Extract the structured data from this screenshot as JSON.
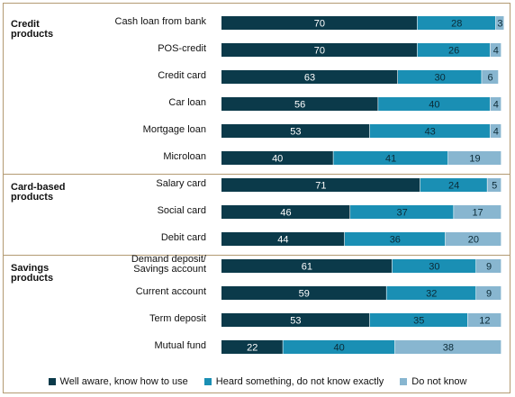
{
  "chart_data": {
    "type": "bar",
    "orientation": "horizontal",
    "stacked": true,
    "unit": "percent",
    "xlim": [
      0,
      100
    ],
    "groups": [
      {
        "label": [
          "Credit",
          "products"
        ],
        "categories": [
          "Cash loan from bank",
          "POS-credit",
          "Credit card",
          "Car loan",
          "Mortgage loan",
          "Microloan"
        ]
      },
      {
        "label": [
          "Card-based",
          "products"
        ],
        "categories": [
          "Salary card",
          "Social card",
          "Debit card"
        ]
      },
      {
        "label": [
          "Savings",
          "products"
        ],
        "categories": [
          [
            "Demand deposit/",
            "Savings account"
          ],
          "Current account",
          "Term deposit",
          "Mutual fund"
        ]
      }
    ],
    "series": [
      {
        "name": "Well aware, know how to use",
        "color": "#0b3a4a",
        "label_color": "#ffffff",
        "values": [
          70,
          70,
          63,
          56,
          53,
          40,
          71,
          46,
          44,
          61,
          59,
          53,
          22
        ]
      },
      {
        "name": "Heard something, do not know exactly",
        "color": "#1a8fb4",
        "label_color": "#0b2a36",
        "values": [
          28,
          26,
          30,
          40,
          43,
          41,
          24,
          37,
          36,
          30,
          32,
          35,
          40
        ]
      },
      {
        "name": "Do not know",
        "color": "#88b6d0",
        "label_color": "#0b2a36",
        "values": [
          3,
          4,
          6,
          4,
          4,
          19,
          5,
          17,
          20,
          9,
          9,
          12,
          38
        ]
      }
    ],
    "legend_position": "bottom",
    "grid": false
  }
}
